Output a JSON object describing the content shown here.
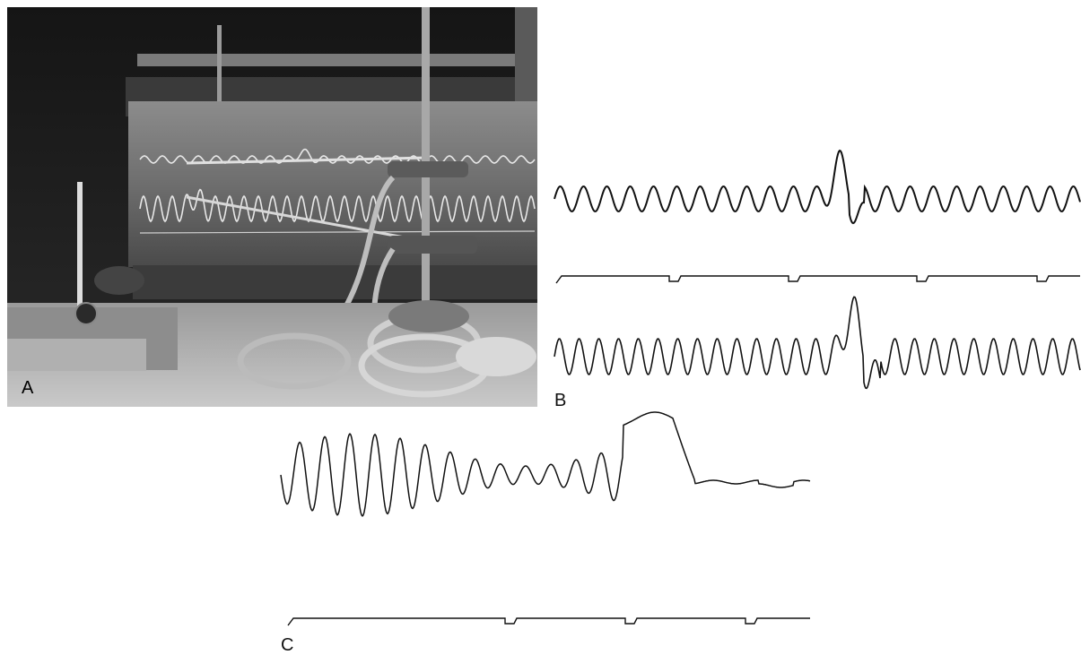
{
  "figure": {
    "panels": [
      {
        "id": "A",
        "label": "A",
        "content": "photograph"
      },
      {
        "id": "B",
        "label": "B",
        "content": "traces"
      },
      {
        "id": "C",
        "label": "C",
        "content": "traces"
      }
    ]
  }
}
